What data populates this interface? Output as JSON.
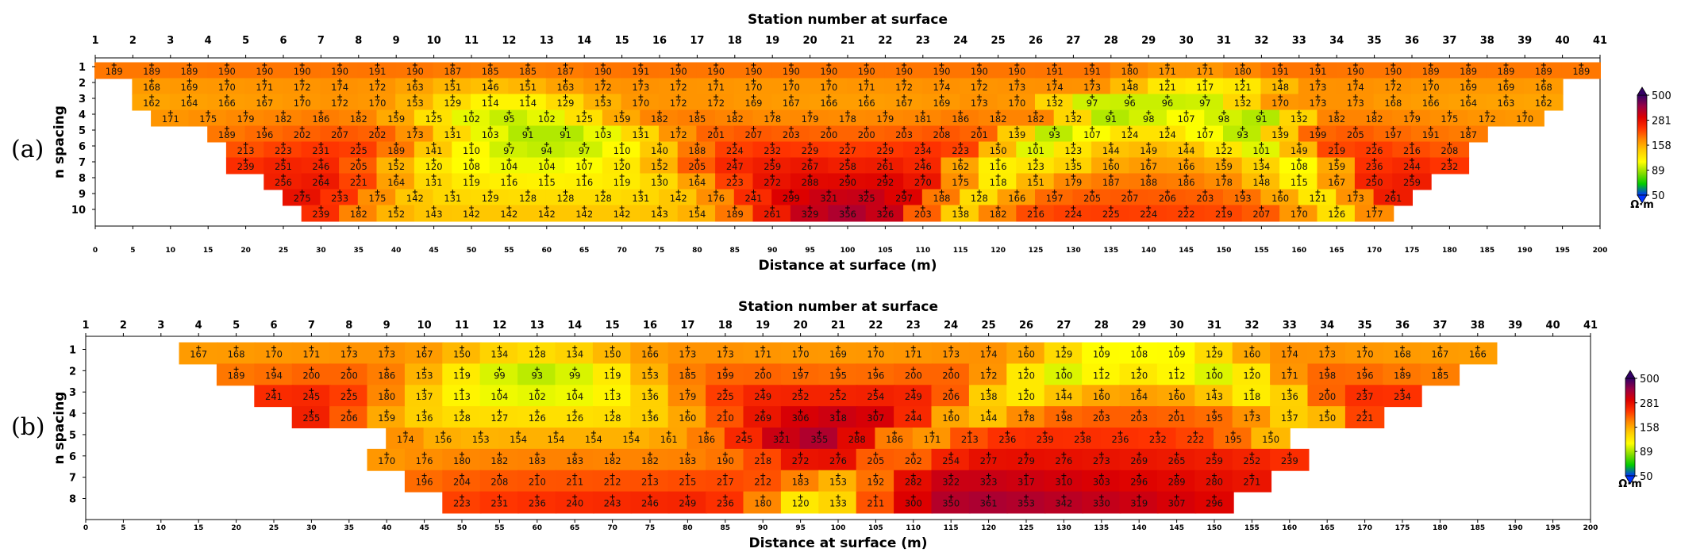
{
  "chart_data": [
    {
      "type": "heatmap",
      "panel": "(a)",
      "title": "Station number at surface",
      "xlabel": "Distance at surface (m)",
      "ylabel": "n spacing",
      "stations": [
        1,
        2,
        3,
        4,
        5,
        6,
        7,
        8,
        9,
        10,
        11,
        12,
        13,
        14,
        15,
        16,
        17,
        18,
        19,
        20,
        21,
        22,
        23,
        24,
        25,
        26,
        27,
        28,
        29,
        30,
        31,
        32,
        33,
        34,
        35,
        36,
        37,
        38,
        39,
        40,
        41
      ],
      "distance_range": [
        0,
        200
      ],
      "distance_ticks": [
        0,
        5,
        10,
        15,
        20,
        25,
        30,
        35,
        40,
        45,
        50,
        55,
        60,
        65,
        70,
        75,
        80,
        85,
        90,
        95,
        100,
        105,
        110,
        115,
        120,
        125,
        130,
        135,
        140,
        145,
        150,
        155,
        160,
        165,
        170,
        175,
        180,
        185,
        190,
        195,
        200
      ],
      "n_levels": [
        1,
        2,
        3,
        4,
        5,
        6,
        7,
        8,
        9,
        10
      ],
      "rows": [
        {
          "n": 1,
          "values": [
            189,
            189,
            189,
            190,
            190,
            190,
            190,
            191,
            190,
            187,
            185,
            185,
            187,
            190,
            191,
            190,
            190,
            190,
            190,
            190,
            190,
            190,
            190,
            190,
            190,
            191,
            191,
            180,
            171,
            171,
            180,
            191,
            191,
            190,
            190,
            189,
            189,
            189,
            189,
            189
          ]
        },
        {
          "n": 2,
          "values": [
            168,
            169,
            170,
            171,
            172,
            174,
            172,
            163,
            151,
            146,
            151,
            163,
            172,
            173,
            172,
            171,
            170,
            170,
            170,
            171,
            172,
            174,
            172,
            173,
            174,
            173,
            148,
            121,
            117,
            121,
            148,
            173,
            174,
            172,
            170,
            169,
            169,
            168
          ]
        },
        {
          "n": 3,
          "values": [
            162,
            164,
            166,
            167,
            170,
            172,
            170,
            153,
            129,
            114,
            114,
            129,
            153,
            170,
            172,
            172,
            169,
            167,
            166,
            166,
            167,
            169,
            173,
            170,
            132,
            97,
            96,
            96,
            97,
            132,
            170,
            173,
            173,
            168,
            166,
            164,
            163,
            162
          ]
        },
        {
          "n": 4,
          "values": [
            171,
            175,
            179,
            182,
            186,
            182,
            159,
            125,
            102,
            95,
            102,
            125,
            159,
            182,
            185,
            182,
            178,
            179,
            178,
            179,
            181,
            186,
            182,
            182,
            132,
            91,
            98,
            107,
            98,
            91,
            132,
            182,
            182,
            179,
            175,
            172,
            170
          ]
        },
        {
          "n": 5,
          "values": [
            189,
            196,
            202,
            207,
            202,
            173,
            131,
            103,
            91,
            91,
            103,
            131,
            172,
            201,
            207,
            203,
            200,
            200,
            203,
            208,
            201,
            139,
            93,
            107,
            124,
            124,
            107,
            93,
            139,
            199,
            205,
            197,
            191,
            187
          ]
        },
        {
          "n": 6,
          "values": [
            213,
            223,
            231,
            225,
            189,
            141,
            110,
            97,
            94,
            97,
            110,
            140,
            188,
            224,
            232,
            229,
            227,
            229,
            234,
            223,
            150,
            101,
            123,
            144,
            149,
            144,
            122,
            101,
            149,
            219,
            226,
            216,
            208
          ]
        },
        {
          "n": 7,
          "values": [
            239,
            251,
            246,
            205,
            152,
            120,
            108,
            104,
            104,
            107,
            120,
            152,
            205,
            247,
            259,
            267,
            258,
            261,
            246,
            162,
            116,
            123,
            135,
            160,
            167,
            166,
            159,
            134,
            108,
            159,
            236,
            244,
            232
          ]
        },
        {
          "n": 8,
          "values": [
            256,
            264,
            221,
            164,
            131,
            119,
            116,
            115,
            116,
            119,
            130,
            164,
            223,
            272,
            288,
            290,
            292,
            270,
            175,
            118,
            151,
            179,
            187,
            188,
            186,
            178,
            148,
            115,
            167,
            250,
            259
          ]
        },
        {
          "n": 9,
          "values": [
            275,
            233,
            175,
            142,
            131,
            129,
            128,
            128,
            128,
            131,
            142,
            176,
            241,
            299,
            321,
            325,
            297,
            188,
            128,
            166,
            197,
            205,
            207,
            206,
            203,
            193,
            160,
            121,
            173,
            261
          ]
        },
        {
          "n": 10,
          "values": [
            239,
            182,
            152,
            143,
            142,
            142,
            142,
            142,
            142,
            143,
            154,
            189,
            261,
            329,
            356,
            326,
            203,
            138,
            182,
            216,
            224,
            225,
            224,
            222,
            219,
            207,
            170,
            126,
            177
          ]
        }
      ],
      "colorbar": {
        "ticks": [
          50,
          89,
          158,
          281,
          500
        ],
        "unit": "Ω·m",
        "colors": [
          "#0033ff",
          "#00cc00",
          "#88dd00",
          "#ffff00",
          "#ffcc00",
          "#ff8800",
          "#ff3300",
          "#dd0000",
          "#990044",
          "#330066"
        ]
      }
    },
    {
      "type": "heatmap",
      "panel": "(b)",
      "title": "Station number at surface",
      "xlabel": "Distance at surface (m)",
      "ylabel": "n spacing",
      "stations": [
        1,
        2,
        3,
        4,
        5,
        6,
        7,
        8,
        9,
        10,
        11,
        12,
        13,
        14,
        15,
        16,
        17,
        18,
        19,
        20,
        21,
        22,
        23,
        24,
        25,
        26,
        27,
        28,
        29,
        30,
        31,
        32,
        33,
        34,
        35,
        36,
        37,
        38,
        39,
        40,
        41
      ],
      "distance_range": [
        0,
        200
      ],
      "distance_ticks": [
        0,
        5,
        10,
        15,
        20,
        25,
        30,
        35,
        40,
        45,
        50,
        55,
        60,
        65,
        70,
        75,
        80,
        85,
        90,
        95,
        100,
        105,
        110,
        115,
        120,
        125,
        130,
        135,
        140,
        145,
        150,
        155,
        160,
        165,
        170,
        175,
        180,
        185,
        190,
        195,
        200
      ],
      "n_levels": [
        1,
        2,
        3,
        4,
        5,
        6,
        7,
        8
      ],
      "rows": [
        {
          "n": 1,
          "values": [
            167,
            168,
            170,
            171,
            173,
            173,
            167,
            150,
            134,
            128,
            134,
            150,
            166,
            173,
            173,
            171,
            170,
            169,
            170,
            171,
            173,
            174,
            160,
            129,
            109,
            108,
            109,
            129,
            160,
            174,
            173,
            170,
            168,
            167,
            166
          ]
        },
        {
          "n": 2,
          "values": [
            189,
            194,
            200,
            200,
            186,
            153,
            119,
            99,
            93,
            99,
            119,
            153,
            185,
            199,
            200,
            197,
            195,
            196,
            200,
            200,
            172,
            120,
            100,
            112,
            120,
            112,
            100,
            120,
            171,
            198,
            196,
            189,
            185
          ]
        },
        {
          "n": 3,
          "values": [
            241,
            245,
            225,
            180,
            137,
            113,
            104,
            102,
            104,
            113,
            136,
            179,
            225,
            249,
            252,
            252,
            254,
            249,
            206,
            138,
            120,
            144,
            160,
            164,
            160,
            143,
            118,
            136,
            200,
            237,
            234
          ]
        },
        {
          "n": 4,
          "values": [
            255,
            206,
            159,
            136,
            128,
            127,
            126,
            126,
            128,
            136,
            160,
            210,
            269,
            306,
            318,
            307,
            244,
            160,
            144,
            178,
            198,
            203,
            203,
            201,
            195,
            173,
            137,
            150,
            221
          ]
        },
        {
          "n": 5,
          "values": [
            174,
            156,
            153,
            154,
            154,
            154,
            154,
            161,
            186,
            245,
            321,
            355,
            288,
            186,
            171,
            213,
            236,
            239,
            238,
            236,
            232,
            222,
            195,
            150
          ]
        },
        {
          "n": 6,
          "values": [
            170,
            176,
            180,
            182,
            183,
            183,
            182,
            182,
            183,
            190,
            218,
            272,
            276,
            205,
            202,
            254,
            277,
            279,
            276,
            273,
            269,
            265,
            259,
            252,
            239
          ]
        },
        {
          "n": 7,
          "values": [
            196,
            204,
            208,
            210,
            211,
            212,
            213,
            215,
            217,
            212,
            183,
            153,
            192,
            282,
            322,
            323,
            317,
            310,
            303,
            296,
            289,
            280,
            271
          ]
        },
        {
          "n": 8,
          "values": [
            223,
            231,
            236,
            240,
            243,
            246,
            249,
            236,
            180,
            120,
            133,
            211,
            300,
            350,
            361,
            353,
            342,
            330,
            319,
            307,
            296
          ]
        }
      ],
      "colorbar": {
        "ticks": [
          50,
          89,
          158,
          281,
          500
        ],
        "unit": "Ω·m",
        "colors": [
          "#0033ff",
          "#00cc00",
          "#88dd00",
          "#ffff00",
          "#ffcc00",
          "#ff8800",
          "#ff3300",
          "#dd0000",
          "#990044",
          "#330066"
        ]
      }
    }
  ],
  "labels": {
    "panel_a": "(a)",
    "panel_b": "(b)"
  }
}
